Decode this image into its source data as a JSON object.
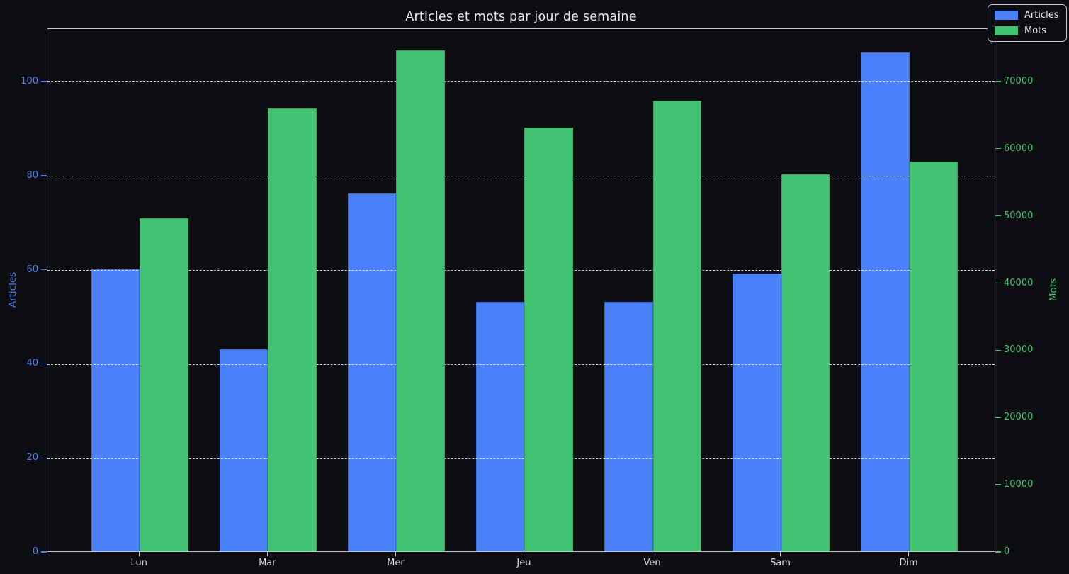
{
  "chart_data": {
    "type": "bar",
    "title": "Articles et mots par jour de semaine",
    "categories": [
      "Lun",
      "Mar",
      "Mer",
      "Jeu",
      "Ven",
      "Sam",
      "Dim"
    ],
    "series": [
      {
        "name": "Articles",
        "axis": "left",
        "color": "#4a80fa",
        "edge_color": "#3a68d8",
        "values": [
          60,
          43,
          76,
          53,
          53,
          59,
          106
        ]
      },
      {
        "name": "Mots",
        "axis": "right",
        "color": "#41c372",
        "edge_color": "#35a35e",
        "values": [
          49500,
          65900,
          74500,
          63000,
          67000,
          56100,
          58000
        ]
      }
    ],
    "axes": {
      "left": {
        "label": "Articles",
        "color": "#4a80fa",
        "ticks": [
          0,
          20,
          40,
          60,
          80,
          100
        ],
        "range": [
          0,
          111.3
        ]
      },
      "right": {
        "label": "Mots",
        "color": "#41c372",
        "ticks": [
          0,
          10000,
          20000,
          30000,
          40000,
          50000,
          60000,
          70000
        ],
        "range": [
          0,
          77900
        ]
      },
      "x": {
        "tick_labels": [
          "Lun",
          "Mar",
          "Mer",
          "Jeu",
          "Ven",
          "Sam",
          "Dim"
        ]
      }
    },
    "grid": {
      "axis": "y",
      "from_axis": "left",
      "style": "dashed",
      "color": "#f2f2f2",
      "above_series": [
        "Articles"
      ],
      "below_series": [
        "Mots"
      ]
    },
    "legend": {
      "position": "upper right",
      "entries": [
        "Articles",
        "Mots"
      ]
    }
  },
  "colors": {
    "background": "#0d0e12",
    "spine": "#c3c7cb",
    "title_text": "#e8eaec",
    "x_tick_text": "#dcdee0"
  }
}
